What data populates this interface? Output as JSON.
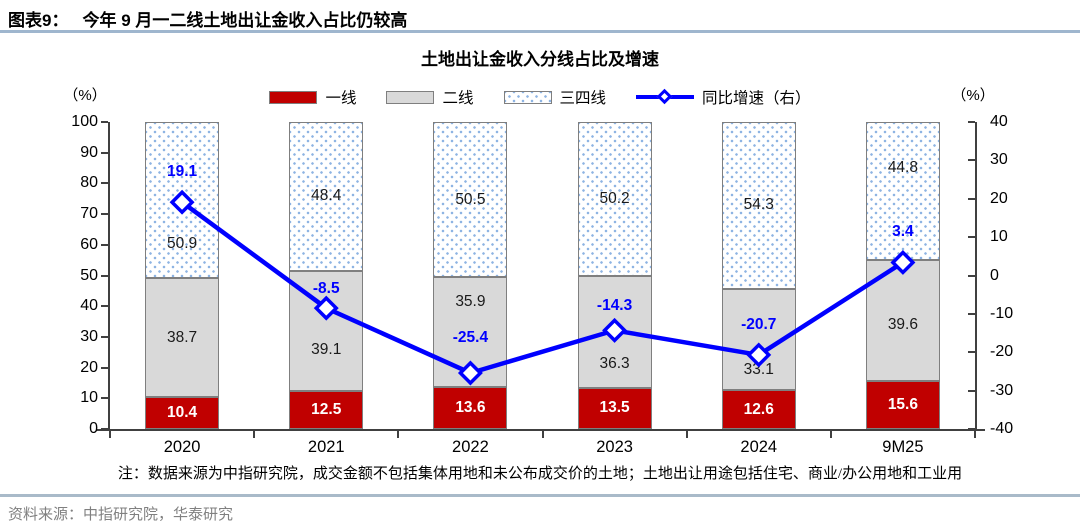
{
  "header": {
    "tag": "图表9：",
    "title": "今年 9 月一二线土地出让金收入占比仍较高"
  },
  "chart_data": {
    "type": "stacked-bar-line",
    "title": "土地出让金收入分线占比及增速",
    "categories": [
      "2020",
      "2021",
      "2022",
      "2023",
      "2024",
      "9M25"
    ],
    "series": [
      {
        "name": "一线",
        "values": [
          10.4,
          12.5,
          13.6,
          13.5,
          12.6,
          15.6
        ],
        "color": "#C00000",
        "label_color": "#FFFFFF",
        "label_bold": true
      },
      {
        "name": "二线",
        "values": [
          38.7,
          39.1,
          35.9,
          36.3,
          33.1,
          39.6
        ],
        "color": "#D9D9D9",
        "label_color": "#1A1A1A",
        "label_bold": false
      },
      {
        "name": "三四线",
        "values": [
          50.9,
          48.4,
          50.5,
          50.2,
          54.3,
          44.8
        ],
        "color": "#FFFFFF",
        "pattern": "blue-dots",
        "dot_color": "#8EB4E3",
        "label_color": "#1A1A1A",
        "label_bold": false
      }
    ],
    "line": {
      "name": "同比增速（右）",
      "values": [
        19.1,
        -8.5,
        -25.4,
        -14.3,
        -20.7,
        3.4
      ],
      "color": "#0000FF",
      "axis": "right",
      "marker": "diamond"
    },
    "left_axis": {
      "unit": "（%）",
      "min": 0,
      "max": 100,
      "step": 10,
      "ticks": [
        0,
        10,
        20,
        30,
        40,
        50,
        60,
        70,
        80,
        90,
        100
      ]
    },
    "right_axis": {
      "unit": "（%）",
      "min": -40,
      "max": 40,
      "step": 10,
      "ticks": [
        -40,
        -30,
        -20,
        -10,
        0,
        10,
        20,
        30,
        40
      ]
    },
    "legend": [
      "一线",
      "二线",
      "三四线",
      "同比增速（右）"
    ],
    "legend_position": "top",
    "grid": false,
    "layout_hints": {
      "bar_label_dy": [
        [
          0,
          0,
          0,
          0,
          0,
          0
        ],
        [
          0,
          19,
          -30,
          32,
          30,
          5
        ],
        [
          44,
          0,
          0,
          0,
          0,
          -23
        ]
      ],
      "line_label_dy": [
        -30,
        -19,
        -35,
        -24,
        -30,
        -30
      ]
    }
  },
  "note": "注：数据来源为中指研究院，成交金额不包括集体用地和未公布成交价的土地；土地出让用途包括住宅、商业/办公用地和工业用",
  "source": "资料来源：中指研究院，华泰研究"
}
